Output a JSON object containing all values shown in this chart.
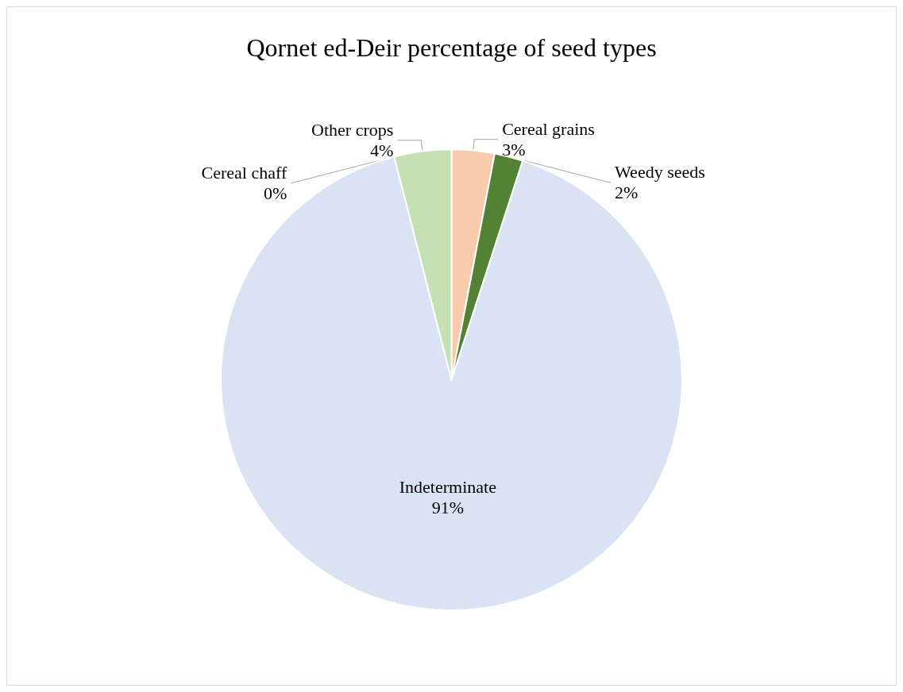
{
  "chart_data": {
    "type": "pie",
    "title": "Qornet ed-Deir percentage of seed types",
    "categories": [
      "Cereal grains",
      "Weedy seeds",
      "Indeterminate",
      "Cereal chaff",
      "Other crops"
    ],
    "values": [
      3,
      2,
      91,
      0,
      4
    ],
    "colors": [
      "#f8cbad",
      "#548235",
      "#dae3f3",
      "#c55a11",
      "#c5e0b4"
    ],
    "value_labels": [
      "3%",
      "2%",
      "91%",
      "0%",
      "4%"
    ],
    "legend": false
  }
}
